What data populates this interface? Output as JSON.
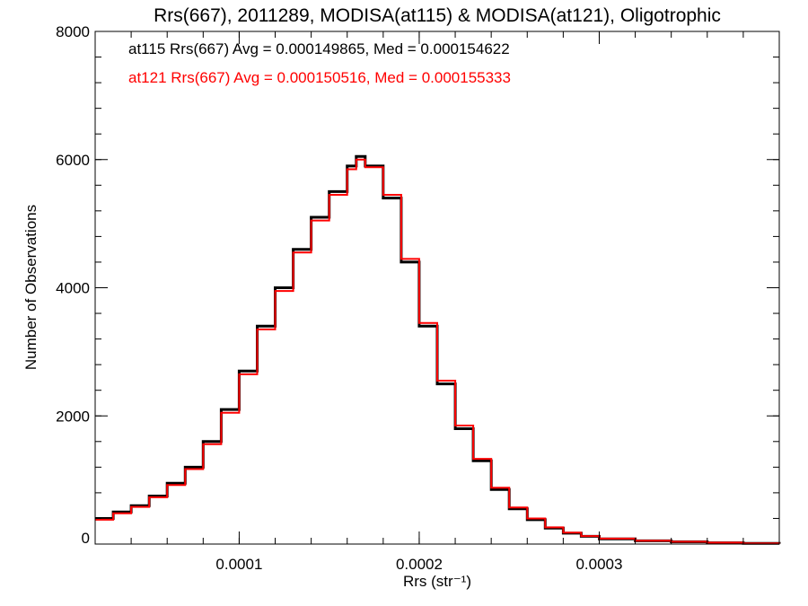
{
  "chart_data": {
    "type": "line",
    "step": true,
    "title": "Rrs(667), 2011289, MODISA(at115) & MODISA(at121), Oligotrophic",
    "xlabel": "Rrs (str⁻¹)",
    "ylabel": "Number of Observations",
    "xlim": [
      2e-05,
      0.0004
    ],
    "ylim": [
      0,
      8000
    ],
    "xticks": [
      0.0001,
      0.0002,
      0.0003
    ],
    "xtick_labels": [
      "0.0001",
      "0.0002",
      "0.0003"
    ],
    "yticks": [
      0,
      2000,
      4000,
      6000,
      8000
    ],
    "ytick_labels": [
      "0",
      "2000",
      "4000",
      "6000",
      "8000"
    ],
    "grid": false,
    "legend_position": "top-left",
    "series": [
      {
        "name": "at115",
        "label": "at115 Rrs(667) Avg = 0.000149865, Med = 0.000154622",
        "color": "#000000",
        "x": [
          2e-05,
          3e-05,
          4e-05,
          5e-05,
          6e-05,
          7e-05,
          8e-05,
          9e-05,
          0.0001,
          0.00011,
          0.00012,
          0.00013,
          0.00014,
          0.00015,
          0.00016,
          0.000165,
          0.00017,
          0.00018,
          0.00019,
          0.0002,
          0.00021,
          0.00022,
          0.00023,
          0.00024,
          0.00025,
          0.00026,
          0.00027,
          0.00028,
          0.00029,
          0.0003,
          0.00032,
          0.00034,
          0.00036,
          0.00038,
          0.0004
        ],
        "y": [
          400,
          500,
          600,
          750,
          950,
          1200,
          1600,
          2100,
          2700,
          3400,
          4000,
          4600,
          5100,
          5500,
          5900,
          6050,
          5900,
          5400,
          4400,
          3400,
          2500,
          1800,
          1300,
          850,
          550,
          380,
          250,
          170,
          120,
          80,
          50,
          35,
          20,
          10,
          5
        ]
      },
      {
        "name": "at121",
        "label": "at121 Rrs(667) Avg = 0.000150516, Med = 0.000155333",
        "color": "#ff0000",
        "x": [
          2e-05,
          3e-05,
          4e-05,
          5e-05,
          6e-05,
          7e-05,
          8e-05,
          9e-05,
          0.0001,
          0.00011,
          0.00012,
          0.00013,
          0.00014,
          0.00015,
          0.00016,
          0.000165,
          0.00017,
          0.00018,
          0.00019,
          0.0002,
          0.00021,
          0.00022,
          0.00023,
          0.00024,
          0.00025,
          0.00026,
          0.00027,
          0.00028,
          0.00029,
          0.0003,
          0.00032,
          0.00034,
          0.00036,
          0.00038,
          0.0004
        ],
        "y": [
          380,
          480,
          580,
          730,
          920,
          1170,
          1560,
          2050,
          2650,
          3350,
          3950,
          4550,
          5050,
          5450,
          5850,
          6000,
          5880,
          5450,
          4450,
          3450,
          2550,
          1850,
          1330,
          880,
          570,
          400,
          260,
          180,
          125,
          85,
          52,
          36,
          22,
          11,
          5
        ]
      }
    ]
  }
}
